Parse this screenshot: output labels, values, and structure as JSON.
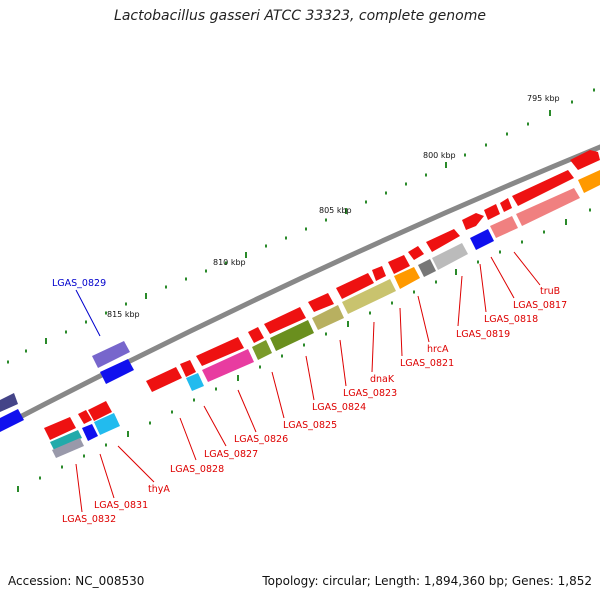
{
  "title": "Lactobacillus gasseri ATCC 33323, complete genome",
  "footer": {
    "accession": "Accession: NC_008530",
    "summary": "Topology: circular; Length: 1,894,360 bp; Genes: 1,852"
  },
  "colors": {
    "backbone": "#888888",
    "tick": "#2a8a2a",
    "forward_gene": "#ee1111",
    "label_red": "#dd0000",
    "label_blue": "#0000cc"
  },
  "scale_labels": [
    "795 kbp",
    "800 kbp",
    "805 kbp",
    "810 kbp",
    "815 kbp"
  ],
  "gene_labels": [
    {
      "text": "LGAS_0829",
      "color": "blue"
    },
    {
      "text": "truB",
      "color": "red"
    },
    {
      "text": "LGAS_0817",
      "color": "red"
    },
    {
      "text": "LGAS_0818",
      "color": "red"
    },
    {
      "text": "LGAS_0819",
      "color": "red"
    },
    {
      "text": "hrcA",
      "color": "red"
    },
    {
      "text": "LGAS_0821",
      "color": "red"
    },
    {
      "text": "dnaK",
      "color": "red"
    },
    {
      "text": "LGAS_0823",
      "color": "red"
    },
    {
      "text": "LGAS_0824",
      "color": "red"
    },
    {
      "text": "LGAS_0825",
      "color": "red"
    },
    {
      "text": "LGAS_0826",
      "color": "red"
    },
    {
      "text": "LGAS_0827",
      "color": "red"
    },
    {
      "text": "LGAS_0828",
      "color": "red"
    },
    {
      "text": "thyA",
      "color": "red"
    },
    {
      "text": "LGAS_0831",
      "color": "red"
    },
    {
      "text": "LGAS_0832",
      "color": "red"
    }
  ]
}
